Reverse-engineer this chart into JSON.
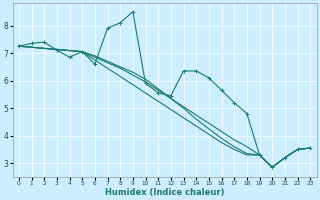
{
  "xlabel": "Humidex (Indice chaleur)",
  "bg_color": "#cceeff",
  "line_color": "#1a7a6e",
  "grid_color": "#ffffff",
  "xlim": [
    -0.5,
    23.5
  ],
  "ylim": [
    2.5,
    8.8
  ],
  "yticks": [
    3,
    4,
    5,
    6,
    7,
    8
  ],
  "xticks": [
    0,
    1,
    2,
    3,
    4,
    5,
    6,
    7,
    8,
    9,
    10,
    11,
    12,
    13,
    14,
    15,
    16,
    17,
    18,
    19,
    20,
    21,
    22,
    23
  ],
  "line_main_x": [
    0,
    1,
    2,
    3,
    4,
    5,
    6,
    7,
    8,
    9,
    10,
    11,
    12,
    13,
    14,
    15,
    16,
    17,
    18,
    19,
    20,
    21,
    22,
    23
  ],
  "line_main_y": [
    7.25,
    7.35,
    7.4,
    7.1,
    6.85,
    7.05,
    6.6,
    7.9,
    8.1,
    8.5,
    5.9,
    5.55,
    5.45,
    6.35,
    6.35,
    6.1,
    5.65,
    5.2,
    4.8,
    3.3,
    2.85,
    3.2,
    3.5,
    3.55
  ],
  "line2_x": [
    0,
    5,
    6,
    7,
    8,
    9,
    10,
    11,
    12,
    13,
    14,
    15,
    16,
    17,
    18,
    19,
    20,
    21,
    22,
    23
  ],
  "line2_y": [
    7.25,
    7.05,
    6.85,
    6.65,
    6.45,
    6.2,
    5.95,
    5.65,
    5.35,
    5.05,
    4.75,
    4.45,
    4.15,
    3.85,
    3.6,
    3.3,
    2.85,
    3.2,
    3.5,
    3.55
  ],
  "line3_x": [
    0,
    5,
    6,
    7,
    8,
    9,
    10,
    11,
    12,
    13,
    14,
    15,
    16,
    17,
    18,
    19,
    20,
    21,
    22,
    23
  ],
  "line3_y": [
    7.25,
    7.05,
    6.75,
    6.45,
    6.15,
    5.85,
    5.55,
    5.25,
    4.95,
    4.65,
    4.35,
    4.05,
    3.75,
    3.5,
    3.3,
    3.3,
    2.85,
    3.2,
    3.5,
    3.55
  ],
  "line4_x": [
    0,
    5,
    6,
    7,
    8,
    9,
    10,
    11,
    12,
    13,
    14,
    15,
    16,
    17,
    18,
    19,
    20,
    21,
    22,
    23
  ],
  "line4_y": [
    7.25,
    7.05,
    6.9,
    6.7,
    6.5,
    6.3,
    6.05,
    5.7,
    5.35,
    5.0,
    4.6,
    4.25,
    3.9,
    3.6,
    3.35,
    3.3,
    2.85,
    3.2,
    3.5,
    3.55
  ]
}
